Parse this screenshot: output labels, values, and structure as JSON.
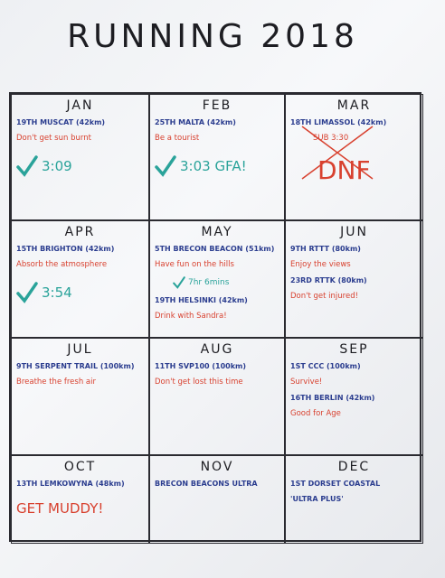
{
  "header": {
    "title": "RUNNING 2018"
  },
  "months": [
    {
      "name": "JAN",
      "lines": [
        {
          "text": "19TH MUSCAT (42km)",
          "kind": "race",
          "color": "#2b3d8f"
        },
        {
          "text": "Don't get sun burnt",
          "kind": "goal",
          "color": "#d8412f"
        },
        {
          "text": "3:09",
          "kind": "result",
          "color": "#2aa39a"
        }
      ]
    },
    {
      "name": "FEB",
      "lines": [
        {
          "text": "25TH MALTA (42km)",
          "kind": "race",
          "color": "#2b3d8f"
        },
        {
          "text": "Be a tourist",
          "kind": "goal",
          "color": "#d8412f"
        },
        {
          "text": "3:03 GFA!",
          "kind": "result",
          "color": "#2aa39a"
        }
      ]
    },
    {
      "name": "MAR",
      "lines": [
        {
          "text": "18TH LIMASSOL (42km)",
          "kind": "race",
          "color": "#2b3d8f"
        },
        {
          "text": "SUB 3:30",
          "kind": "goal",
          "color": "#d8412f",
          "struck": true
        },
        {
          "text": "DNF",
          "kind": "result",
          "color": "#d8412f"
        }
      ]
    },
    {
      "name": "APR",
      "lines": [
        {
          "text": "15TH BRIGHTON (42km)",
          "kind": "race",
          "color": "#2b3d8f"
        },
        {
          "text": "Absorb the atmosphere",
          "kind": "goal",
          "color": "#d8412f"
        },
        {
          "text": "3:54",
          "kind": "result",
          "color": "#2aa39a"
        }
      ]
    },
    {
      "name": "MAY",
      "lines": [
        {
          "text": "5TH BRECON BEACON (51km)",
          "kind": "race",
          "color": "#2b3d8f"
        },
        {
          "text": "Have fun on the hills",
          "kind": "goal",
          "color": "#d8412f"
        },
        {
          "text": "7hr 6mins",
          "kind": "note",
          "color": "#2aa39a"
        },
        {
          "text": "19TH HELSINKI (42km)",
          "kind": "race",
          "color": "#2b3d8f"
        },
        {
          "text": "Drink with Sandra!",
          "kind": "goal",
          "color": "#d8412f"
        }
      ]
    },
    {
      "name": "JUN",
      "lines": [
        {
          "text": "9TH RTTT (80km)",
          "kind": "race",
          "color": "#2b3d8f"
        },
        {
          "text": "Enjoy the views",
          "kind": "goal",
          "color": "#d8412f"
        },
        {
          "text": "23RD RTTK (80km)",
          "kind": "race",
          "color": "#2b3d8f"
        },
        {
          "text": "Don't get injured!",
          "kind": "goal",
          "color": "#d8412f"
        }
      ]
    },
    {
      "name": "JUL",
      "lines": [
        {
          "text": "9TH SERPENT TRAIL (100km)",
          "kind": "race",
          "color": "#2b3d8f"
        },
        {
          "text": "Breathe the fresh air",
          "kind": "goal",
          "color": "#d8412f"
        }
      ]
    },
    {
      "name": "AUG",
      "lines": [
        {
          "text": "11TH SVP100 (100km)",
          "kind": "race",
          "color": "#2b3d8f"
        },
        {
          "text": "Don't get lost this time",
          "kind": "goal",
          "color": "#d8412f"
        }
      ]
    },
    {
      "name": "SEP",
      "lines": [
        {
          "text": "1ST CCC (100km)",
          "kind": "race",
          "color": "#2b3d8f"
        },
        {
          "text": "Survive!",
          "kind": "goal",
          "color": "#d8412f"
        },
        {
          "text": "16TH BERLIN (42km)",
          "kind": "race",
          "color": "#2b3d8f"
        },
        {
          "text": "Good for Age",
          "kind": "goal",
          "color": "#d8412f"
        }
      ]
    },
    {
      "name": "OCT",
      "lines": [
        {
          "text": "13TH LEMKOWYNA (48km)",
          "kind": "race",
          "color": "#2b3d8f"
        },
        {
          "text": "GET MUDDY!",
          "kind": "result",
          "color": "#d8412f"
        }
      ]
    },
    {
      "name": "NOV",
      "lines": [
        {
          "text": "BRECON BEACONS ULTRA",
          "kind": "race",
          "color": "#2b3d8f"
        }
      ]
    },
    {
      "name": "DEC",
      "lines": [
        {
          "text": "1ST DORSET COASTAL",
          "kind": "race",
          "color": "#2b3d8f"
        },
        {
          "text": "'ULTRA PLUS'",
          "kind": "race",
          "color": "#2b3d8f"
        }
      ]
    }
  ]
}
